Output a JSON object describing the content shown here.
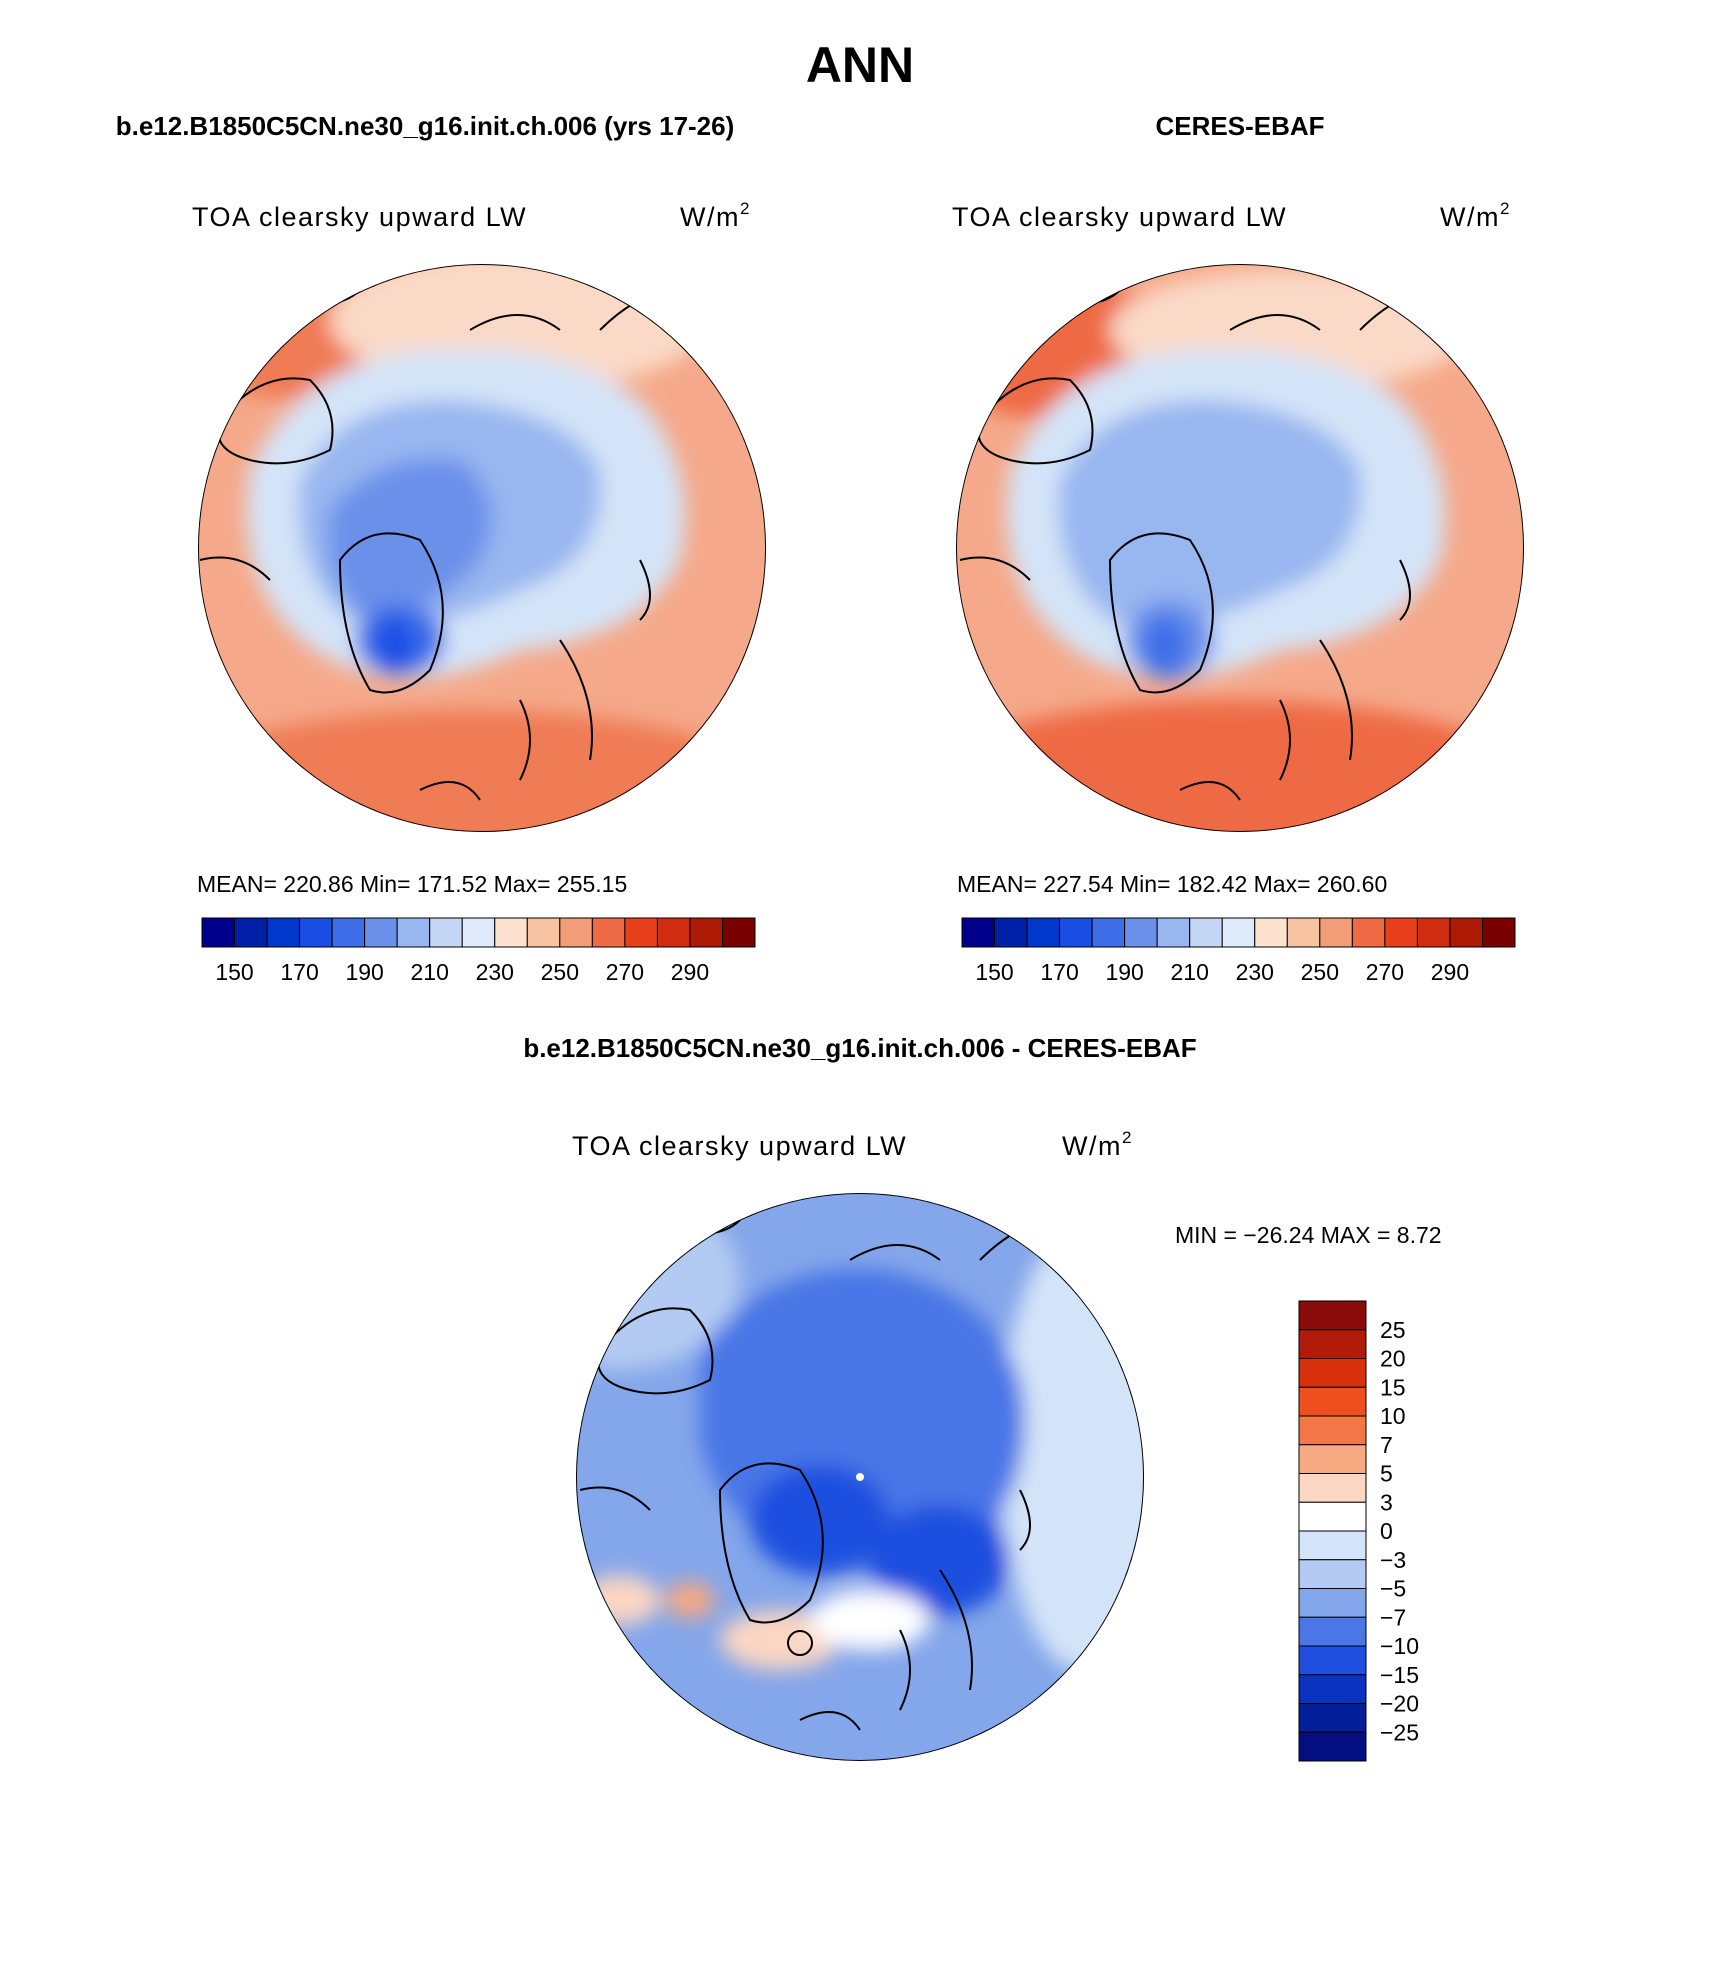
{
  "figure": {
    "title": "ANN"
  },
  "panels": [
    {
      "id": "model",
      "subtitle": "b.e12.B1850C5CN.ne30_g16.init.ch.006 (yrs 17-26)",
      "variable": "TOA clearsky upward LW",
      "units": "W/m",
      "units_sup": "2",
      "stats": {
        "mean": "220.86",
        "min": "171.52",
        "max": "255.15"
      },
      "stats_text": "MEAN= 220.86   Min= 171.52   Max= 255.15"
    },
    {
      "id": "obs",
      "subtitle": "CERES-EBAF",
      "variable": "TOA clearsky upward LW",
      "units": "W/m",
      "units_sup": "2",
      "stats": {
        "mean": "227.54",
        "min": "182.42",
        "max": "260.60"
      },
      "stats_text": "MEAN= 227.54   Min= 182.42   Max= 260.60"
    },
    {
      "id": "diff",
      "subtitle": "b.e12.B1850C5CN.ne30_g16.init.ch.006 - CERES-EBAF",
      "variable": "TOA clearsky upward LW",
      "units": "W/m",
      "units_sup": "2",
      "stats": {
        "min": "-26.24",
        "max": "8.72"
      },
      "stats_text": "MIN = −26.24 MAX =    8.72"
    }
  ],
  "colorbar_abs": {
    "orientation": "horizontal",
    "colors": [
      "#00008c",
      "#0020a8",
      "#0038cc",
      "#1a4fe6",
      "#3d6ee8",
      "#6b90ea",
      "#98b6f0",
      "#c4d6f5",
      "#dfebfa",
      "#fde3cf",
      "#f8c3a3",
      "#f29c78",
      "#ee6b45",
      "#e8401c",
      "#d02c10",
      "#ad1a05",
      "#7a0000"
    ],
    "tick_labels": [
      "150",
      "170",
      "190",
      "210",
      "230",
      "250",
      "270",
      "290"
    ]
  },
  "colorbar_diff": {
    "orientation": "vertical",
    "colors_top_to_bottom": [
      "#8b0a0a",
      "#b11a08",
      "#d8300c",
      "#ef4f1c",
      "#f37848",
      "#f7a982",
      "#fbd6c2",
      "#ffffff",
      "#d4e4f8",
      "#b3cbf2",
      "#84a6ea",
      "#4a76e6",
      "#1f4fdf",
      "#0a32c0",
      "#042098",
      "#030f80"
    ],
    "tick_labels_top_to_bottom": [
      "25",
      "20",
      "15",
      "10",
      "7",
      "5",
      "3",
      "0",
      "−3",
      "−5",
      "−7",
      "−10",
      "−15",
      "−20",
      "−25"
    ]
  },
  "chart_data": [
    {
      "type": "heatmap",
      "title": "b.e12.B1850C5CN.ne30_g16.init.ch.006 (yrs 17-26)",
      "variable": "TOA clearsky upward LW",
      "units": "W/m2",
      "projection": "polar stereographic (North Pole)",
      "mean": 220.86,
      "min": 171.52,
      "max": 255.15,
      "levels": [
        150,
        160,
        170,
        180,
        190,
        200,
        210,
        220,
        230,
        240,
        250,
        260,
        270,
        280,
        290
      ]
    },
    {
      "type": "heatmap",
      "title": "CERES-EBAF",
      "variable": "TOA clearsky upward LW",
      "units": "W/m2",
      "projection": "polar stereographic (North Pole)",
      "mean": 227.54,
      "min": 182.42,
      "max": 260.6,
      "levels": [
        150,
        160,
        170,
        180,
        190,
        200,
        210,
        220,
        230,
        240,
        250,
        260,
        270,
        280,
        290
      ]
    },
    {
      "type": "heatmap",
      "title": "b.e12.B1850C5CN.ne30_g16.init.ch.006 - CERES-EBAF",
      "variable": "TOA clearsky upward LW",
      "units": "W/m2",
      "projection": "polar stereographic (North Pole)",
      "min": -26.24,
      "max": 8.72,
      "levels": [
        -25,
        -20,
        -15,
        -10,
        -7,
        -5,
        -3,
        0,
        3,
        5,
        7,
        10,
        15,
        20,
        25
      ]
    }
  ]
}
